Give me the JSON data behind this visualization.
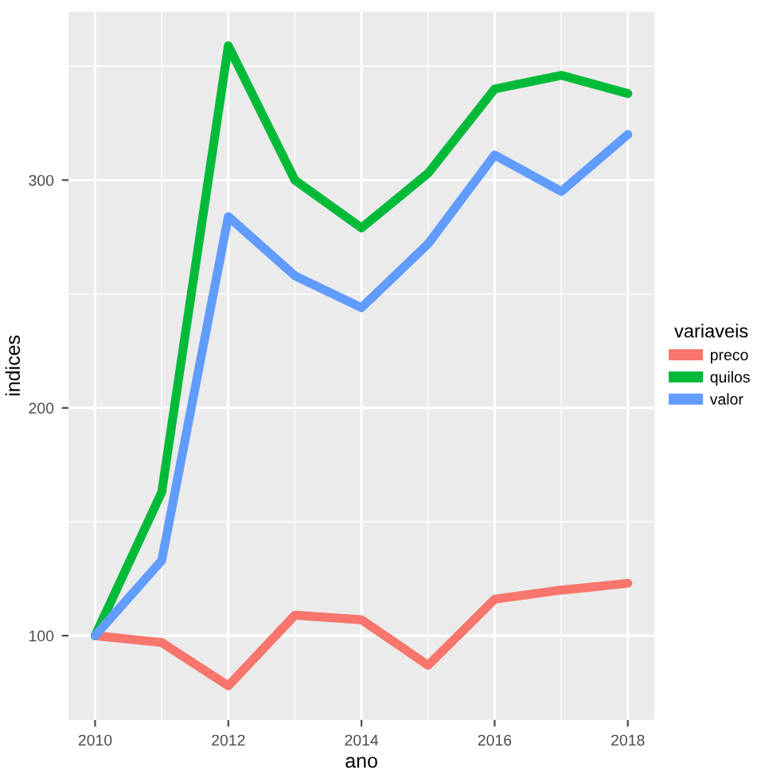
{
  "chart_data": {
    "type": "line",
    "xlabel": "ano",
    "ylabel": "indices",
    "legend_title": "variaveis",
    "legend": "right",
    "x": [
      2010,
      2011,
      2012,
      2013,
      2014,
      2015,
      2016,
      2017,
      2018
    ],
    "series": [
      {
        "name": "preco",
        "color": "#f8766d",
        "values": [
          100,
          97,
          78,
          109,
          107,
          87,
          116,
          120,
          123
        ]
      },
      {
        "name": "quilos",
        "color": "#00ba38",
        "values": [
          100,
          163,
          359,
          300,
          279,
          303,
          340,
          346,
          338
        ]
      },
      {
        "name": "valor",
        "color": "#619cff",
        "values": [
          100,
          133,
          284,
          258,
          244,
          272,
          311,
          295,
          320
        ]
      }
    ],
    "xlim": [
      2009.6,
      2018.4
    ],
    "ylim": [
      63,
      374
    ],
    "xticks": [
      2010,
      2012,
      2014,
      2016,
      2018
    ],
    "yticks": [
      100,
      200,
      300
    ],
    "grid": true
  }
}
